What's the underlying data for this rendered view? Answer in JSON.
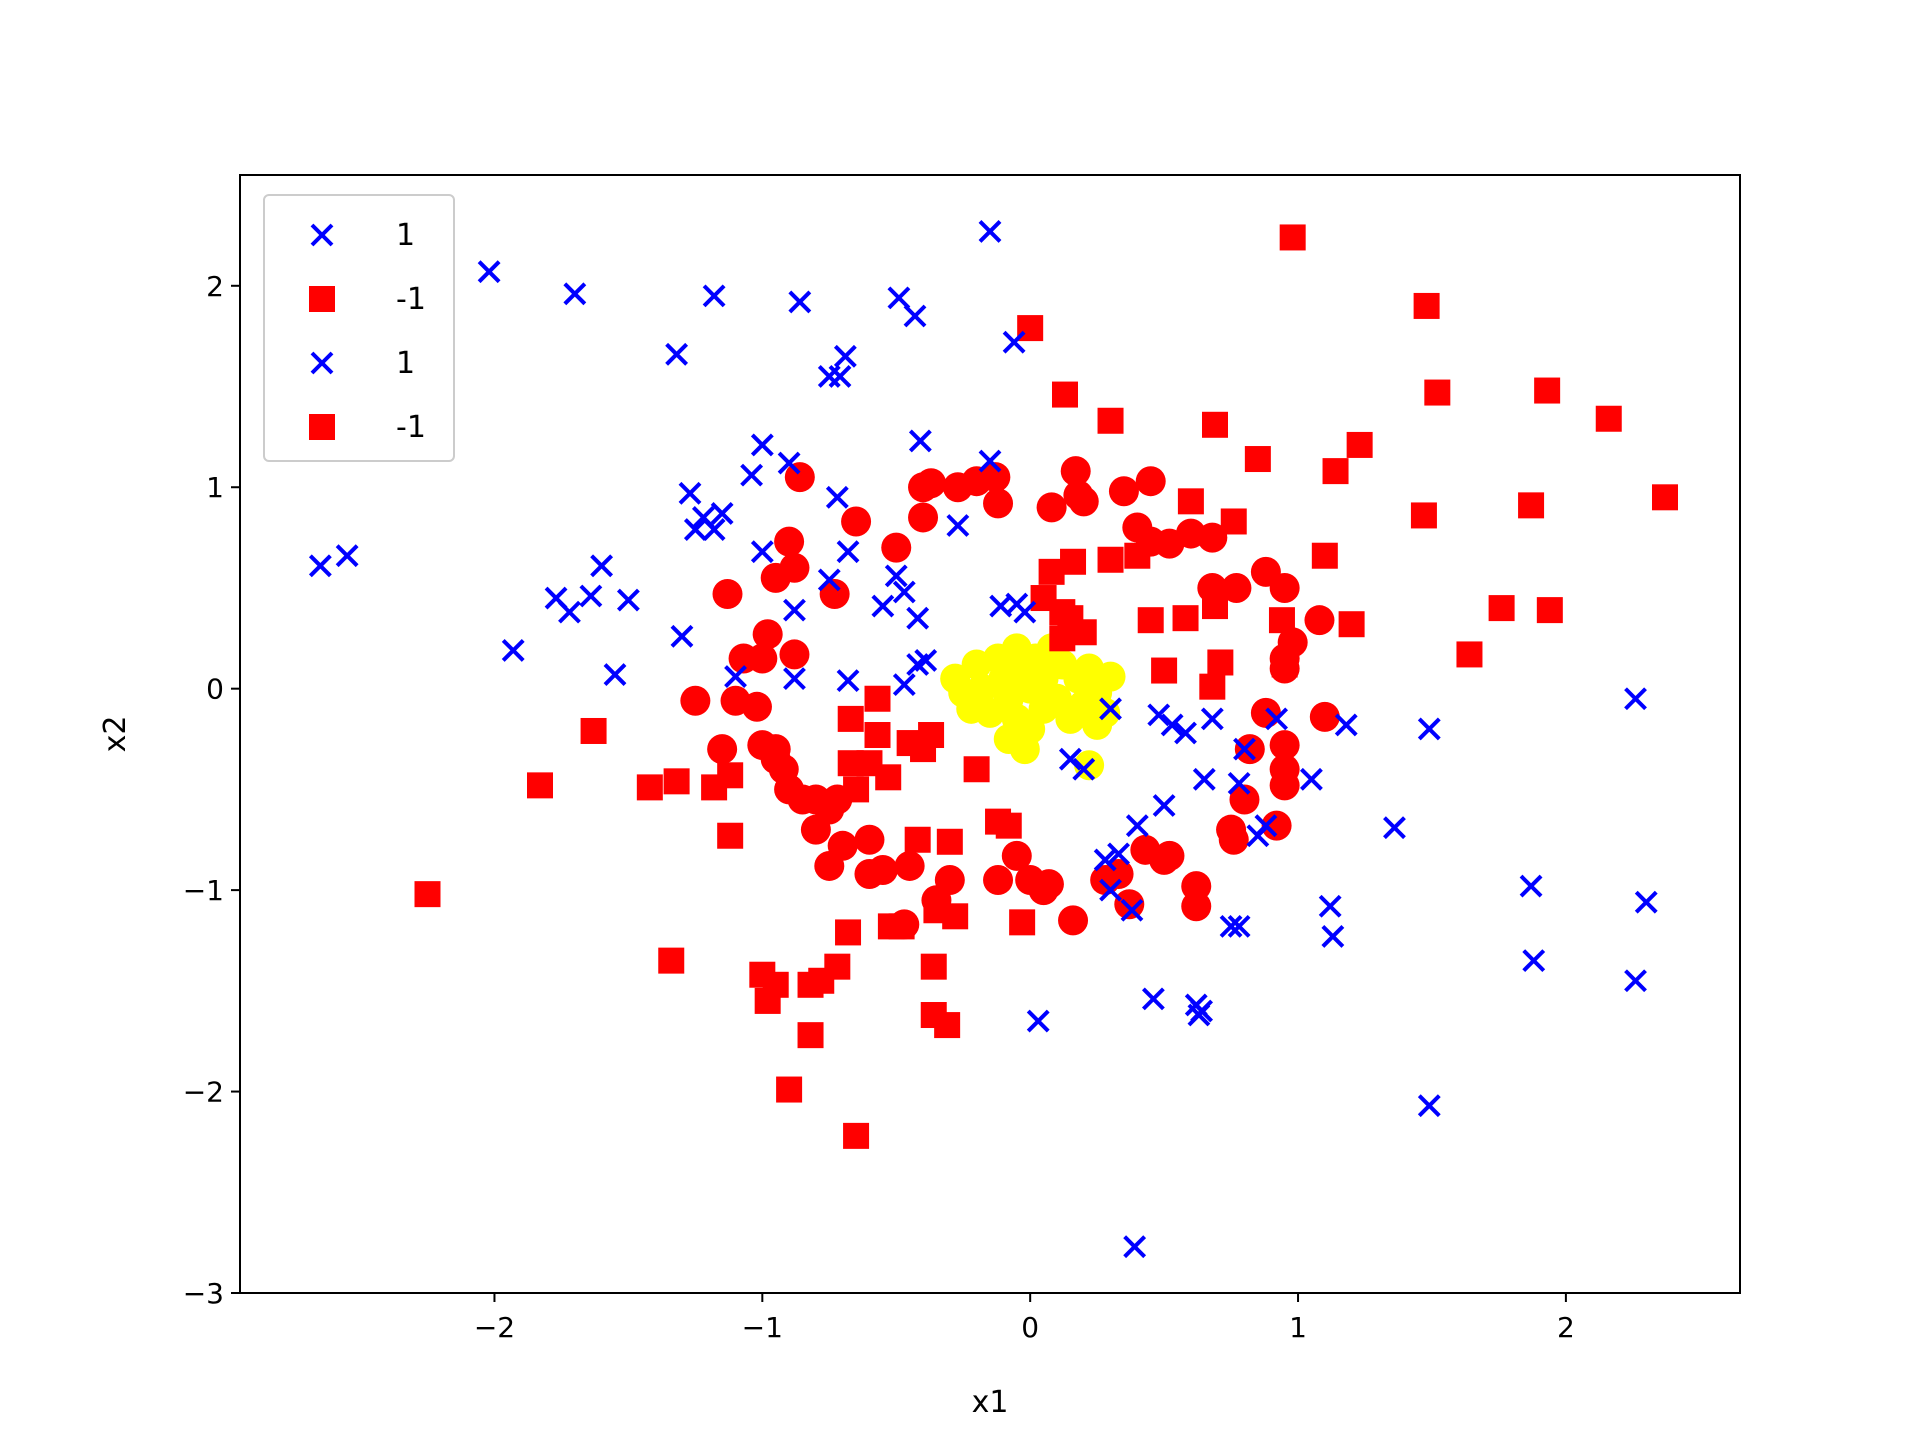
{
  "chart_data": {
    "type": "scatter",
    "title": "",
    "xlabel": "x1",
    "ylabel": "x2",
    "xlim": [
      -2.95,
      2.65
    ],
    "ylim": [
      -3.0,
      2.55
    ],
    "xticks": [
      -2,
      -1,
      0,
      1,
      2
    ],
    "xtick_labels": [
      "−2",
      "−1",
      "0",
      "1",
      "2"
    ],
    "yticks": [
      -3,
      -2,
      -1,
      0,
      1,
      2
    ],
    "ytick_labels": [
      "−3",
      "−2",
      "−1",
      "0",
      "1",
      "2"
    ],
    "grid": false,
    "legend_position": "top-left",
    "legend": [
      {
        "label": "1",
        "marker": "x",
        "color": "#0000ff"
      },
      {
        "label": "-1",
        "marker": "square",
        "color": "#ff0000"
      },
      {
        "label": "1",
        "marker": "x",
        "color": "#0000ff"
      },
      {
        "label": "-1",
        "marker": "square",
        "color": "#ff0000"
      }
    ],
    "series": [
      {
        "name": "1",
        "marker": "x",
        "color": "#0000ff",
        "points": [
          [
            -0.15,
            2.27
          ],
          [
            -2.02,
            2.07
          ],
          [
            -1.7,
            1.96
          ],
          [
            -1.18,
            1.95
          ],
          [
            -0.86,
            1.92
          ],
          [
            -0.49,
            1.94
          ],
          [
            -0.43,
            1.85
          ],
          [
            -1.32,
            1.66
          ],
          [
            -0.69,
            1.65
          ],
          [
            -0.75,
            1.55
          ],
          [
            -0.71,
            1.55
          ],
          [
            -0.06,
            1.72
          ],
          [
            -1.0,
            1.21
          ],
          [
            -1.04,
            1.06
          ],
          [
            -0.9,
            1.12
          ],
          [
            -0.41,
            1.23
          ],
          [
            -0.15,
            1.13
          ],
          [
            -1.27,
            0.97
          ],
          [
            -1.22,
            0.85
          ],
          [
            -1.15,
            0.87
          ],
          [
            -1.25,
            0.79
          ],
          [
            -1.18,
            0.79
          ],
          [
            -0.72,
            0.95
          ],
          [
            -0.27,
            0.81
          ],
          [
            -2.65,
            0.61
          ],
          [
            -2.55,
            0.66
          ],
          [
            -1.6,
            0.61
          ],
          [
            -1.64,
            0.46
          ],
          [
            -1.77,
            0.45
          ],
          [
            -1.72,
            0.38
          ],
          [
            -1.5,
            0.44
          ],
          [
            -1.3,
            0.26
          ],
          [
            -1.93,
            0.19
          ],
          [
            -1.55,
            0.07
          ],
          [
            -1.0,
            0.68
          ],
          [
            -0.68,
            0.68
          ],
          [
            -0.75,
            0.54
          ],
          [
            -0.5,
            0.56
          ],
          [
            -0.55,
            0.41
          ],
          [
            -0.47,
            0.48
          ],
          [
            -0.42,
            0.35
          ],
          [
            -0.88,
            0.39
          ],
          [
            -0.88,
            0.05
          ],
          [
            -0.68,
            0.04
          ],
          [
            -1.1,
            0.06
          ],
          [
            -0.47,
            0.02
          ],
          [
            -0.42,
            0.12
          ],
          [
            -0.39,
            0.14
          ],
          [
            -0.11,
            0.41
          ],
          [
            -0.05,
            0.42
          ],
          [
            -0.02,
            0.38
          ],
          [
            0.3,
            -0.1
          ],
          [
            0.15,
            -0.35
          ],
          [
            0.2,
            -0.4
          ],
          [
            0.48,
            -0.13
          ],
          [
            0.53,
            -0.18
          ],
          [
            0.58,
            -0.22
          ],
          [
            0.68,
            -0.15
          ],
          [
            0.8,
            -0.3
          ],
          [
            0.92,
            -0.15
          ],
          [
            1.18,
            -0.18
          ],
          [
            1.05,
            -0.45
          ],
          [
            0.65,
            -0.45
          ],
          [
            0.78,
            -0.47
          ],
          [
            0.5,
            -0.58
          ],
          [
            0.4,
            -0.68
          ],
          [
            0.28,
            -0.85
          ],
          [
            0.3,
            -1.0
          ],
          [
            0.33,
            -0.82
          ],
          [
            0.85,
            -0.73
          ],
          [
            0.88,
            -0.68
          ],
          [
            0.38,
            -1.1
          ],
          [
            0.75,
            -1.18
          ],
          [
            0.78,
            -1.18
          ],
          [
            1.12,
            -1.08
          ],
          [
            1.13,
            -1.23
          ],
          [
            1.36,
            -0.69
          ],
          [
            1.49,
            -0.2
          ],
          [
            0.03,
            -1.65
          ],
          [
            0.46,
            -1.54
          ],
          [
            0.62,
            -1.57
          ],
          [
            0.63,
            -1.62
          ],
          [
            0.64,
            -1.6
          ],
          [
            1.49,
            -2.07
          ],
          [
            1.87,
            -0.98
          ],
          [
            1.88,
            -1.35
          ],
          [
            2.26,
            -1.45
          ],
          [
            2.3,
            -1.06
          ],
          [
            2.26,
            -0.05
          ],
          [
            0.39,
            -2.77
          ]
        ]
      },
      {
        "name": "-1",
        "marker": "square",
        "color": "#ff0000",
        "points": [
          [
            0.98,
            2.24
          ],
          [
            1.48,
            1.9
          ],
          [
            0.0,
            1.79
          ],
          [
            1.52,
            1.47
          ],
          [
            1.93,
            1.48
          ],
          [
            2.16,
            1.34
          ],
          [
            0.13,
            1.46
          ],
          [
            0.3,
            1.33
          ],
          [
            0.69,
            1.31
          ],
          [
            1.23,
            1.21
          ],
          [
            0.85,
            1.14
          ],
          [
            1.14,
            1.08
          ],
          [
            1.47,
            0.86
          ],
          [
            1.87,
            0.91
          ],
          [
            2.37,
            0.95
          ],
          [
            0.6,
            0.93
          ],
          [
            0.76,
            0.83
          ],
          [
            1.1,
            0.66
          ],
          [
            1.76,
            0.4
          ],
          [
            1.94,
            0.39
          ],
          [
            1.64,
            0.17
          ],
          [
            1.2,
            0.32
          ],
          [
            0.58,
            0.35
          ],
          [
            0.45,
            0.34
          ],
          [
            0.69,
            0.41
          ],
          [
            0.5,
            0.09
          ],
          [
            0.71,
            0.13
          ],
          [
            0.68,
            0.01
          ],
          [
            0.94,
            0.34
          ],
          [
            0.95,
            0.12
          ],
          [
            0.3,
            0.64
          ],
          [
            0.4,
            0.66
          ],
          [
            0.16,
            0.63
          ],
          [
            0.08,
            0.58
          ],
          [
            0.05,
            0.45
          ],
          [
            0.12,
            0.38
          ],
          [
            0.15,
            0.35
          ],
          [
            0.2,
            0.28
          ],
          [
            0.12,
            0.25
          ],
          [
            -1.63,
            -0.21
          ],
          [
            -1.83,
            -0.48
          ],
          [
            -1.42,
            -0.49
          ],
          [
            -1.32,
            -0.46
          ],
          [
            -1.18,
            -0.49
          ],
          [
            -1.12,
            -0.43
          ],
          [
            -1.12,
            -0.73
          ],
          [
            -0.57,
            -0.05
          ],
          [
            -0.67,
            -0.15
          ],
          [
            -0.57,
            -0.23
          ],
          [
            -0.6,
            -0.37
          ],
          [
            -0.67,
            -0.37
          ],
          [
            -0.65,
            -0.5
          ],
          [
            -0.53,
            -0.44
          ],
          [
            -0.45,
            -0.27
          ],
          [
            -0.4,
            -0.3
          ],
          [
            -0.37,
            -0.23
          ],
          [
            -0.2,
            -0.4
          ],
          [
            -0.3,
            -0.76
          ],
          [
            -0.42,
            -0.75
          ],
          [
            -0.12,
            -0.66
          ],
          [
            -0.08,
            -0.68
          ],
          [
            -0.52,
            -1.18
          ],
          [
            -0.48,
            -1.18
          ],
          [
            -0.35,
            -1.1
          ],
          [
            -0.28,
            -1.13
          ],
          [
            -0.03,
            -1.16
          ],
          [
            -0.68,
            -1.21
          ],
          [
            -1.34,
            -1.35
          ],
          [
            -1.0,
            -1.42
          ],
          [
            -0.95,
            -1.47
          ],
          [
            -0.98,
            -1.55
          ],
          [
            -0.82,
            -1.47
          ],
          [
            -0.78,
            -1.45
          ],
          [
            -0.72,
            -1.38
          ],
          [
            -0.36,
            -1.38
          ],
          [
            -0.36,
            -1.62
          ],
          [
            -0.31,
            -1.67
          ],
          [
            -0.82,
            -1.72
          ],
          [
            -0.9,
            -1.99
          ],
          [
            -2.25,
            -1.02
          ],
          [
            -0.65,
            -2.22
          ]
        ]
      },
      {
        "name": "",
        "marker": "circle",
        "color": "#ff0000",
        "points": [
          [
            -0.86,
            1.05
          ],
          [
            -0.4,
            1.0
          ],
          [
            -0.37,
            1.02
          ],
          [
            -0.27,
            1.0
          ],
          [
            -0.2,
            1.03
          ],
          [
            -0.13,
            1.05
          ],
          [
            -0.12,
            0.92
          ],
          [
            -0.4,
            0.85
          ],
          [
            -0.5,
            0.7
          ],
          [
            0.17,
            1.08
          ],
          [
            0.18,
            0.96
          ],
          [
            0.2,
            0.93
          ],
          [
            0.08,
            0.9
          ],
          [
            0.35,
            0.98
          ],
          [
            0.45,
            1.03
          ],
          [
            -0.65,
            0.83
          ],
          [
            -0.9,
            0.73
          ],
          [
            -0.88,
            0.6
          ],
          [
            -0.73,
            0.47
          ],
          [
            -1.13,
            0.47
          ],
          [
            -0.95,
            0.55
          ],
          [
            -0.98,
            0.27
          ],
          [
            -1.0,
            0.15
          ],
          [
            -0.88,
            0.17
          ],
          [
            -1.07,
            0.15
          ],
          [
            -1.25,
            -0.06
          ],
          [
            -1.1,
            -0.06
          ],
          [
            -1.02,
            -0.09
          ],
          [
            -1.15,
            -0.3
          ],
          [
            -1.0,
            -0.28
          ],
          [
            -0.95,
            -0.3
          ],
          [
            -0.95,
            -0.35
          ],
          [
            -0.92,
            -0.4
          ],
          [
            -0.9,
            -0.5
          ],
          [
            -0.85,
            -0.55
          ],
          [
            -0.8,
            -0.55
          ],
          [
            -0.72,
            -0.55
          ],
          [
            -0.75,
            -0.6
          ],
          [
            -0.8,
            -0.7
          ],
          [
            -0.75,
            -0.88
          ],
          [
            -0.7,
            -0.78
          ],
          [
            -0.6,
            -0.75
          ],
          [
            -0.6,
            -0.92
          ],
          [
            -0.55,
            -0.9
          ],
          [
            -0.45,
            -0.88
          ],
          [
            -0.47,
            -1.17
          ],
          [
            -0.35,
            -1.05
          ],
          [
            -0.3,
            -0.95
          ],
          [
            -0.12,
            -0.95
          ],
          [
            -0.05,
            -0.83
          ],
          [
            0.0,
            -0.95
          ],
          [
            0.05,
            -1.0
          ],
          [
            0.07,
            -0.97
          ],
          [
            0.16,
            -1.15
          ],
          [
            0.28,
            -0.95
          ],
          [
            0.33,
            -0.92
          ],
          [
            0.37,
            -1.07
          ],
          [
            0.43,
            -0.8
          ],
          [
            0.5,
            -0.85
          ],
          [
            0.52,
            -0.83
          ],
          [
            0.62,
            -1.08
          ],
          [
            0.62,
            -0.98
          ],
          [
            0.75,
            -0.7
          ],
          [
            0.76,
            -0.75
          ],
          [
            0.8,
            -0.55
          ],
          [
            0.92,
            -0.68
          ],
          [
            0.82,
            -0.3
          ],
          [
            0.88,
            -0.12
          ],
          [
            0.95,
            -0.28
          ],
          [
            0.95,
            -0.4
          ],
          [
            0.95,
            -0.48
          ],
          [
            1.1,
            -0.14
          ],
          [
            1.08,
            0.34
          ],
          [
            0.98,
            0.23
          ],
          [
            0.95,
            0.1
          ],
          [
            0.95,
            0.15
          ],
          [
            0.95,
            0.5
          ],
          [
            0.88,
            0.58
          ],
          [
            0.77,
            0.5
          ],
          [
            0.68,
            0.5
          ],
          [
            0.4,
            0.8
          ],
          [
            0.45,
            0.73
          ],
          [
            0.52,
            0.72
          ],
          [
            0.6,
            0.77
          ],
          [
            0.68,
            0.75
          ]
        ]
      },
      {
        "name": "",
        "marker": "circle",
        "color": "#ffff00",
        "points": [
          [
            -0.28,
            0.05
          ],
          [
            -0.25,
            -0.02
          ],
          [
            -0.2,
            0.12
          ],
          [
            -0.18,
            0.0
          ],
          [
            -0.15,
            -0.12
          ],
          [
            -0.12,
            0.15
          ],
          [
            -0.1,
            0.05
          ],
          [
            -0.08,
            -0.05
          ],
          [
            -0.05,
            0.2
          ],
          [
            -0.05,
            -0.15
          ],
          [
            -0.03,
            0.1
          ],
          [
            0.0,
            0.0
          ],
          [
            0.0,
            -0.2
          ],
          [
            0.02,
            0.15
          ],
          [
            0.05,
            0.05
          ],
          [
            0.05,
            -0.1
          ],
          [
            0.08,
            0.2
          ],
          [
            0.1,
            -0.05
          ],
          [
            0.12,
            0.12
          ],
          [
            0.15,
            -0.15
          ],
          [
            0.18,
            0.05
          ],
          [
            0.2,
            -0.08
          ],
          [
            0.22,
            0.1
          ],
          [
            0.25,
            -0.02
          ],
          [
            0.28,
            -0.12
          ],
          [
            0.3,
            0.06
          ],
          [
            -0.02,
            -0.3
          ],
          [
            -0.08,
            -0.25
          ],
          [
            0.22,
            -0.38
          ],
          [
            0.25,
            -0.18
          ],
          [
            -0.22,
            -0.1
          ]
        ]
      }
    ]
  }
}
